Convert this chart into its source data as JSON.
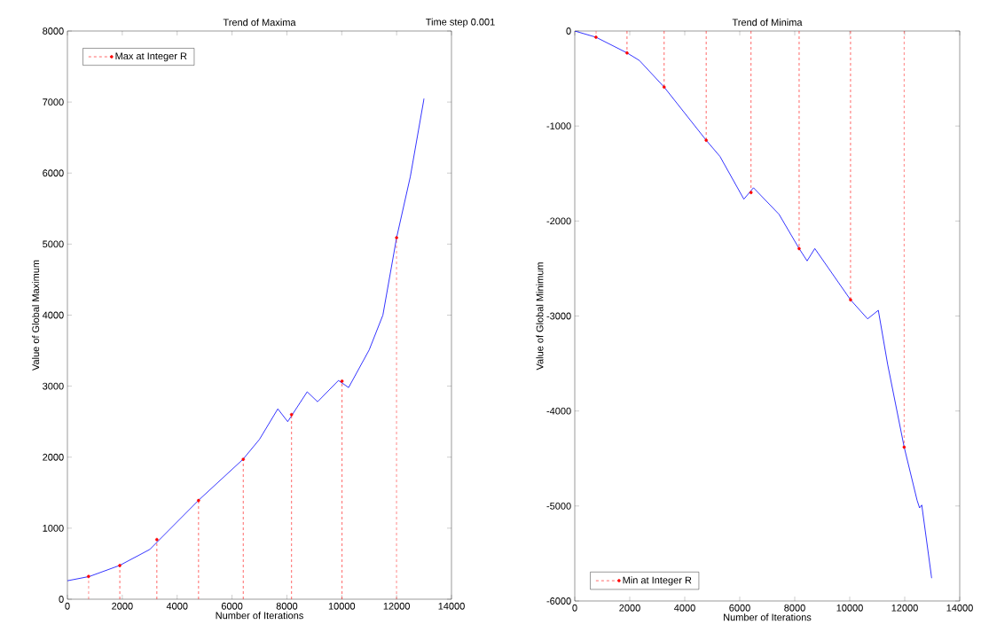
{
  "chart_data": [
    {
      "type": "line",
      "title": "Trend of Maxima",
      "xlabel": "Number of Iterations",
      "ylabel": "Value of Global Maximum",
      "annotations": [
        "Time step 0.001"
      ],
      "xlim": [
        0,
        14000
      ],
      "ylim": [
        0,
        8000
      ],
      "xticks": [
        0,
        2000,
        4000,
        6000,
        8000,
        10000,
        12000,
        14000
      ],
      "yticks": [
        0,
        1000,
        2000,
        3000,
        4000,
        5000,
        6000,
        7000,
        8000
      ],
      "legend": "top left",
      "grid": false,
      "series": [
        {
          "type": "line",
          "color": "#0000ff",
          "marker": "none",
          "line_style": "solid",
          "x": [
            0,
            800,
            1900,
            3000,
            4800,
            6400,
            7000,
            7670,
            8030,
            8740,
            9120,
            9880,
            10250,
            11000,
            11500,
            12000,
            12500,
            13000
          ],
          "values": [
            260,
            320,
            475,
            700,
            1400,
            1970,
            2250,
            2680,
            2500,
            2920,
            2780,
            3080,
            2980,
            3510,
            4000,
            5090,
            5950,
            7050
          ]
        },
        {
          "type": "lollipop",
          "name": "Max at Integer R",
          "color": "#ff0000",
          "marker": "circle",
          "line_style": "dashed",
          "x": [
            770,
            1910,
            3260,
            4780,
            6410,
            8170,
            10010,
            12000
          ],
          "values": [
            320,
            475,
            840,
            1390,
            1970,
            2600,
            3070,
            5090
          ]
        }
      ]
    },
    {
      "type": "line",
      "title": "Trend of Minima",
      "xlabel": "Number of Iterations",
      "ylabel": "Value of Global Minimum",
      "xlim": [
        0,
        14000
      ],
      "ylim": [
        -6000,
        0
      ],
      "xticks": [
        0,
        2000,
        4000,
        6000,
        8000,
        10000,
        12000,
        14000
      ],
      "yticks": [
        -6000,
        -5000,
        -4000,
        -3000,
        -2000,
        -1000,
        0
      ],
      "legend": "bottom left",
      "grid": false,
      "series": [
        {
          "type": "line",
          "color": "#0000ff",
          "marker": "none",
          "line_style": "solid",
          "x": [
            0,
            770,
            1900,
            2350,
            3250,
            4780,
            5280,
            6150,
            6500,
            7430,
            8160,
            8450,
            8730,
            10030,
            10650,
            11040,
            11380,
            11980,
            12450,
            12540,
            12620,
            12980
          ],
          "values": [
            0,
            -65,
            -230,
            -310,
            -590,
            -1150,
            -1320,
            -1770,
            -1650,
            -1930,
            -2290,
            -2420,
            -2290,
            -2830,
            -3030,
            -2940,
            -3510,
            -4380,
            -4940,
            -5020,
            -4990,
            -5760
          ]
        },
        {
          "type": "lollipop",
          "name": "Min at Integer R",
          "color": "#ff0000",
          "marker": "circle",
          "line_style": "dashed",
          "x": [
            770,
            1900,
            3250,
            4780,
            6410,
            8160,
            10030,
            11980
          ],
          "values": [
            -65,
            -230,
            -590,
            -1150,
            -1700,
            -2290,
            -2830,
            -4380
          ]
        }
      ]
    }
  ]
}
